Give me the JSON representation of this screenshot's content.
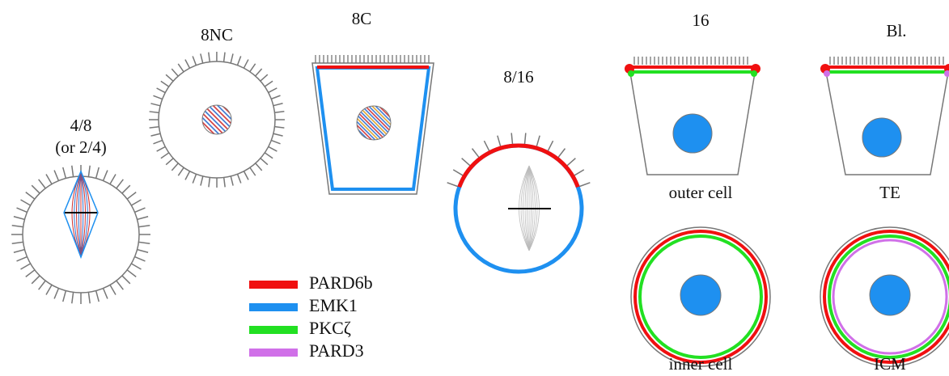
{
  "stages": {
    "s48": [
      "4/8",
      "(or 2/4)"
    ],
    "s8nc": "8NC",
    "s8c": "8C",
    "s816": "8/16",
    "s16": "16",
    "sbl": "Bl."
  },
  "cells": {
    "outer": "outer cell",
    "te": "TE",
    "inner": "inner cell",
    "icm": "ICM"
  },
  "legend": [
    {
      "name": "PARD6b",
      "color": "#f01010"
    },
    {
      "name": "EMK1",
      "color": "#1e90f0"
    },
    {
      "name": "PKCζ",
      "color": "#22e022"
    },
    {
      "name": "PARD3",
      "color": "#d070e8"
    }
  ]
}
